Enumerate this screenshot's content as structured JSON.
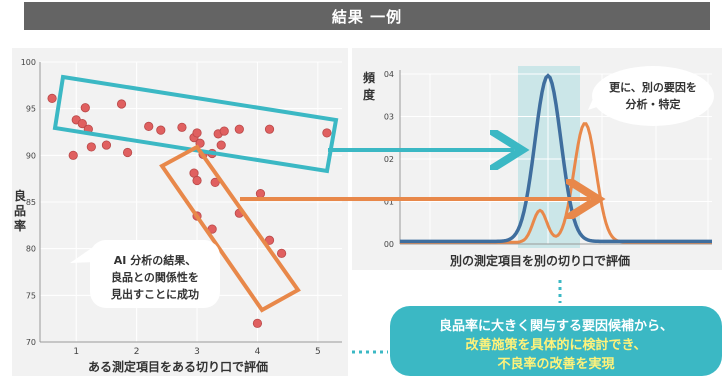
{
  "title": "結果 一例",
  "colors": {
    "teal": "#3bb8c4",
    "orange": "#e8884a",
    "blue": "#3f6e9e",
    "dot": "#e06060",
    "highlight": "#cbe6e8",
    "header": "#646464"
  },
  "scatter": {
    "type": "scatter",
    "xlabel": "ある測定項目をある切り口で評価",
    "ylabel": "良品率",
    "xlim": [
      0.4,
      5.4
    ],
    "ylim": [
      70,
      100
    ],
    "x_ticks": [
      "1",
      "2",
      "3",
      "4",
      "5"
    ],
    "y_ticks": [
      "100",
      "95",
      "90",
      "85",
      "80",
      "75",
      "70"
    ],
    "points": [
      {
        "x": 0.6,
        "y": 96.1
      },
      {
        "x": 0.95,
        "y": 90.0
      },
      {
        "x": 1.0,
        "y": 93.8
      },
      {
        "x": 1.1,
        "y": 93.4
      },
      {
        "x": 1.15,
        "y": 95.1
      },
      {
        "x": 1.2,
        "y": 92.8
      },
      {
        "x": 1.25,
        "y": 90.9
      },
      {
        "x": 1.5,
        "y": 91.1
      },
      {
        "x": 1.75,
        "y": 95.5
      },
      {
        "x": 1.85,
        "y": 90.3
      },
      {
        "x": 2.2,
        "y": 93.1
      },
      {
        "x": 2.4,
        "y": 92.7
      },
      {
        "x": 2.75,
        "y": 93.0
      },
      {
        "x": 2.95,
        "y": 91.9
      },
      {
        "x": 3.0,
        "y": 92.4
      },
      {
        "x": 3.05,
        "y": 91.3
      },
      {
        "x": 3.1,
        "y": 90.1
      },
      {
        "x": 3.25,
        "y": 90.2
      },
      {
        "x": 3.35,
        "y": 92.3
      },
      {
        "x": 3.4,
        "y": 91.1
      },
      {
        "x": 3.45,
        "y": 92.6
      },
      {
        "x": 3.7,
        "y": 92.8
      },
      {
        "x": 4.2,
        "y": 92.8
      },
      {
        "x": 5.15,
        "y": 92.4
      },
      {
        "x": 2.95,
        "y": 88.1
      },
      {
        "x": 3.0,
        "y": 87.3
      },
      {
        "x": 3.3,
        "y": 87.1
      },
      {
        "x": 3.0,
        "y": 83.5
      },
      {
        "x": 3.25,
        "y": 82.1
      },
      {
        "x": 3.7,
        "y": 83.8
      },
      {
        "x": 4.05,
        "y": 85.9
      },
      {
        "x": 4.2,
        "y": 80.9
      },
      {
        "x": 4.4,
        "y": 79.5
      },
      {
        "x": 4.0,
        "y": 72.0
      }
    ]
  },
  "scatter_callout": {
    "line1": "AI 分析の結果、",
    "line2": "良品との関係性を",
    "line3": "見出すことに成功"
  },
  "freq": {
    "type": "line",
    "xlabel": "別の測定項目を別の切り口で評価",
    "ylabel_top": "頻",
    "ylabel_bottom": "度",
    "y_ticks": [
      "04",
      "03",
      "02",
      "01",
      "00"
    ],
    "ylim": [
      0,
      0.04
    ],
    "series": [
      {
        "color": "blue",
        "peak": 0.039
      },
      {
        "color": "orange",
        "peak": 0.028
      }
    ]
  },
  "freq_callout": {
    "line1": "更に、別の要因を",
    "line2": "分析・特定"
  },
  "result": {
    "line1": "良品率に大きく関与する要因候補から、",
    "line2": "改善施策を具体的に検討でき、",
    "line3": "不良率の改善を実現"
  }
}
